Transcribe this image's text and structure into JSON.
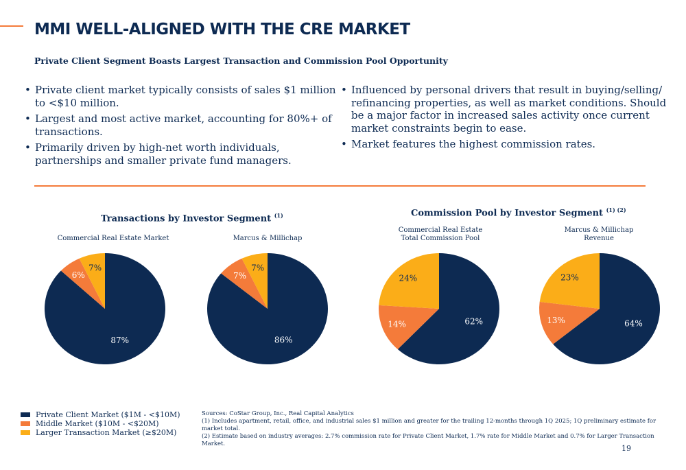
{
  "title": "MMI WELL-ALIGNED WITH THE CRE MARKET",
  "subtitle": "Private Client Segment Boasts Largest Transaction and Commission Pool Opportunity",
  "bullets_left": [
    "Private client market typically consists of sales $1 million to <$10 million.",
    "Largest and most active market, accounting for 80%+ of transactions.",
    "Primarily driven by high-net worth individuals, partnerships and smaller private fund managers."
  ],
  "bullets_right": [
    "Influenced by personal drivers that result in buying/selling/ refinancing properties, as well as market conditions. Should be a major factor in increased sales activity once current market constraints begin to ease.",
    "Market features the highest commission rates."
  ],
  "colors": {
    "private_client": "#0d2a52",
    "middle_market": "#f47b3a",
    "larger_transaction": "#fbad18"
  },
  "sections": {
    "transactions": {
      "title": "Transactions by Investor Segment",
      "note": "(1)"
    },
    "commission": {
      "title": "Commission Pool by Investor Segment",
      "note": "(1) (2)"
    }
  },
  "chart_data": [
    {
      "type": "pie",
      "title": "Commercial Real Estate Market",
      "categories": [
        "Private Client Market ($1M - <$10M)",
        "Middle Market ($10M - <$20M)",
        "Larger Transaction Market (≥$20M)"
      ],
      "values": [
        87,
        6,
        7
      ],
      "labels": [
        "87%",
        "6%",
        "7%"
      ]
    },
    {
      "type": "pie",
      "title": "Marcus & Millichap",
      "categories": [
        "Private Client Market ($1M - <$10M)",
        "Middle Market ($10M - <$20M)",
        "Larger Transaction Market (≥$20M)"
      ],
      "values": [
        86,
        7,
        7
      ],
      "labels": [
        "86%",
        "7%",
        "7%"
      ]
    },
    {
      "type": "pie",
      "title": "Commercial Real Estate\nTotal Commission Pool",
      "categories": [
        "Private Client Market ($1M - <$10M)",
        "Middle Market ($10M - <$20M)",
        "Larger Transaction Market (≥$20M)"
      ],
      "values": [
        62,
        14,
        24
      ],
      "labels": [
        "62%",
        "14%",
        "24%"
      ]
    },
    {
      "type": "pie",
      "title": "Marcus & Millichap\nRevenue",
      "categories": [
        "Private Client Market ($1M - <$10M)",
        "Middle Market ($10M - <$20M)",
        "Larger Transaction Market (≥$20M)"
      ],
      "values": [
        64,
        13,
        23
      ],
      "labels": [
        "64%",
        "13%",
        "23%"
      ]
    }
  ],
  "legend": [
    "Private Client Market ($1M - <$10M)",
    "Middle Market ($10M - <$20M)",
    "Larger Transaction Market (≥$20M)"
  ],
  "sources": [
    "Sources: CoStar Group, Inc., Real Capital Analytics",
    "(1) Includes apartment, retail, office, and industrial sales $1 million and greater for the trailing 12-months through 1Q 2025; 1Q preliminary estimate for market total.",
    "(2)  Estimate based on industry averages: 2.7% commission rate for Private Client Market, 1.7% rate for Middle Market and 0.7% for Larger Transaction Market."
  ],
  "page_number": "19"
}
